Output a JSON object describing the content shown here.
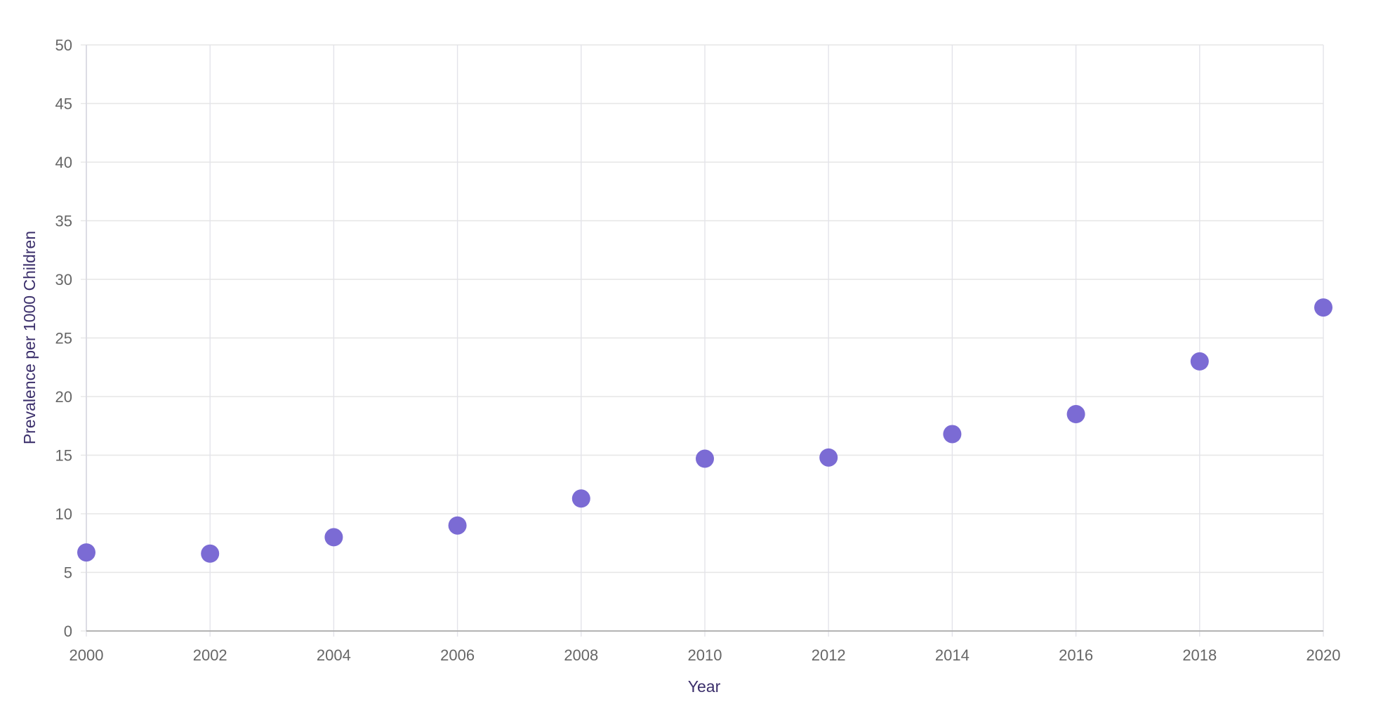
{
  "chart_data": {
    "type": "scatter",
    "title": "",
    "xlabel": "Year",
    "ylabel": "Prevalence per 1000 Children",
    "xlim": [
      2000,
      2020
    ],
    "ylim": [
      0,
      50
    ],
    "x_ticks": [
      "2000",
      "2002",
      "2004",
      "2006",
      "2008",
      "2010",
      "2012",
      "2014",
      "2016",
      "2018",
      "2020"
    ],
    "y_ticks": [
      "0",
      "5",
      "10",
      "15",
      "20",
      "25",
      "30",
      "35",
      "40",
      "45",
      "50"
    ],
    "grid": true,
    "legend": "none",
    "series": [
      {
        "color": "#7b6bd4",
        "points": [
          {
            "x": 2000,
            "y": 6.7
          },
          {
            "x": 2002,
            "y": 6.6
          },
          {
            "x": 2004,
            "y": 8.0
          },
          {
            "x": 2006,
            "y": 9.0
          },
          {
            "x": 2008,
            "y": 11.3
          },
          {
            "x": 2010,
            "y": 14.7
          },
          {
            "x": 2012,
            "y": 14.8
          },
          {
            "x": 2014,
            "y": 16.8
          },
          {
            "x": 2016,
            "y": 18.5
          },
          {
            "x": 2018,
            "y": 23.0
          },
          {
            "x": 2020,
            "y": 27.6
          }
        ]
      }
    ]
  }
}
